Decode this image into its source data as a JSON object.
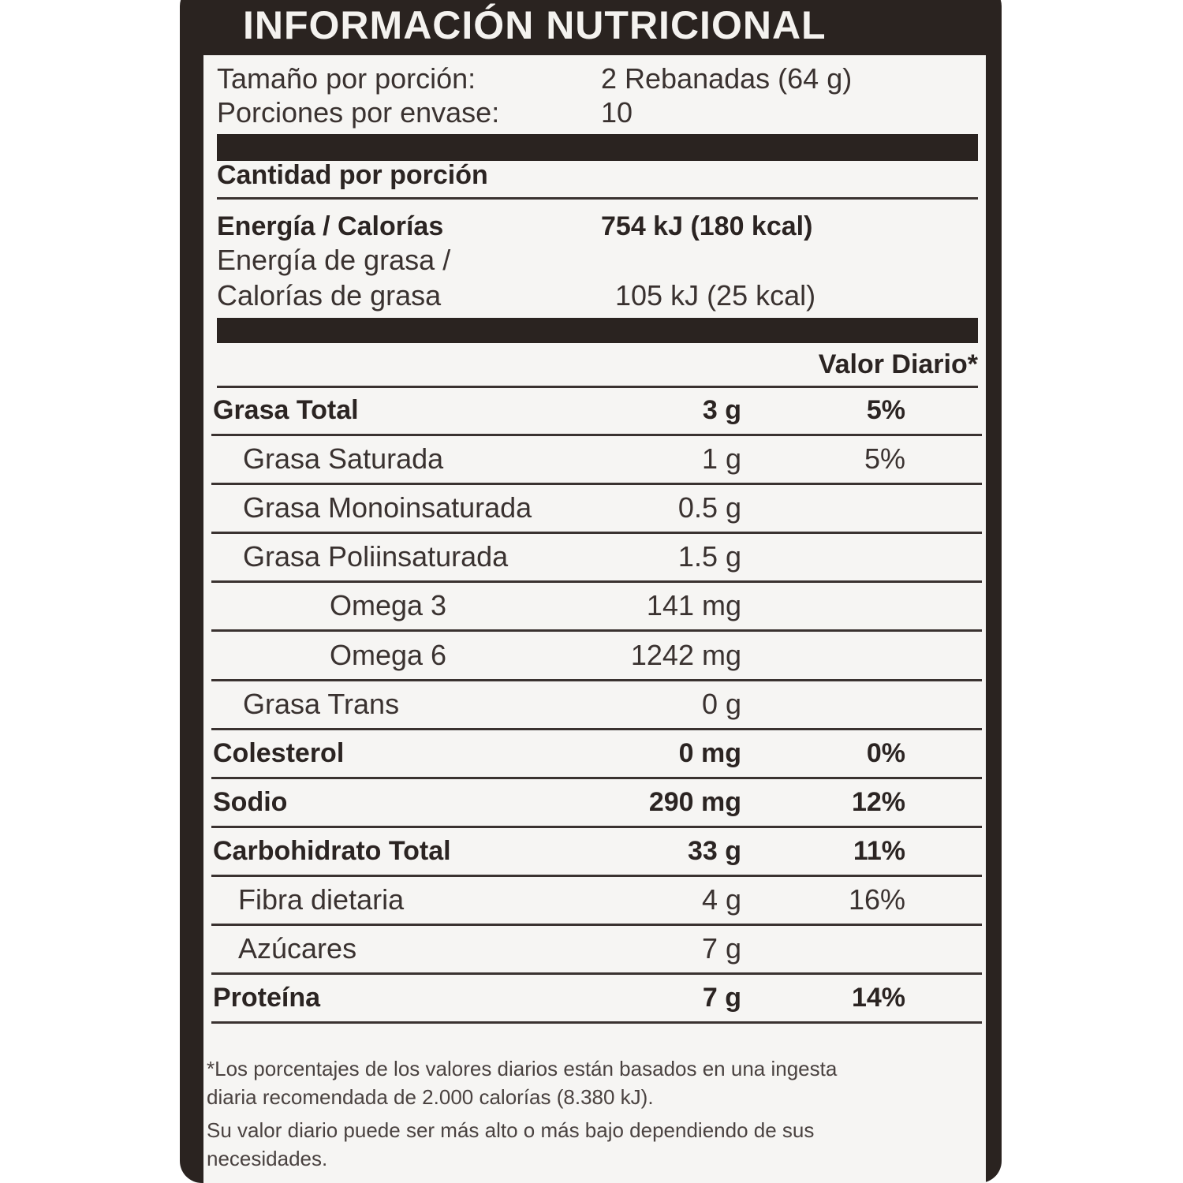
{
  "header": {
    "title": "INFORMACIÓN NUTRICIONAL"
  },
  "serving": {
    "rows": [
      {
        "label": "Tamaño por porción:",
        "value": "2 Rebanadas (64 g)"
      },
      {
        "label": "Porciones por envase:",
        "value": "10"
      }
    ]
  },
  "amount_header": "Cantidad por porción",
  "energy": {
    "rows": [
      {
        "label_lines": [
          "Energía / Calorías"
        ],
        "value": "754 kJ (180 kcal)"
      },
      {
        "label_lines": [
          "Energía de grasa /",
          "Calorías de grasa"
        ],
        "value": "105 kJ (25 kcal)"
      }
    ]
  },
  "daily_value_header": "Valor Diario*",
  "nutrients": [
    {
      "name": "Grasa Total",
      "amount": "3 g",
      "daily_value": "5%"
    },
    {
      "name": "Grasa Saturada",
      "amount": "1 g",
      "daily_value": "5%"
    },
    {
      "name": "Grasa Monoinsaturada",
      "amount": "0.5 g"
    },
    {
      "name": "Grasa Poliinsaturada",
      "amount": "1.5 g"
    },
    {
      "name": "Omega 3",
      "amount": "141 mg"
    },
    {
      "name": "Omega 6",
      "amount": "1242 mg"
    },
    {
      "name": "Grasa Trans",
      "amount": "0 g"
    },
    {
      "name": "Colesterol",
      "amount": "0 mg",
      "daily_value": "0%"
    },
    {
      "name": "Sodio",
      "amount": "290 mg",
      "daily_value": "12%"
    },
    {
      "name": "Carbohidrato Total",
      "amount": "33 g",
      "daily_value": "11%"
    },
    {
      "name": "Fibra dietaria",
      "amount": "4 g",
      "daily_value": "16%"
    },
    {
      "name": "Azúcares",
      "amount": "7 g"
    },
    {
      "name": "Proteína",
      "amount": "7 g",
      "daily_value": "14%"
    }
  ],
  "footnote": {
    "lines": [
      "*Los porcentajes de los valores diarios están basados en una ingesta",
      "diaria recomendada de 2.000 calorías (8.380 kJ).",
      "Su valor diario puede ser más alto o más bajo dependiendo de sus",
      "necesidades."
    ]
  }
}
